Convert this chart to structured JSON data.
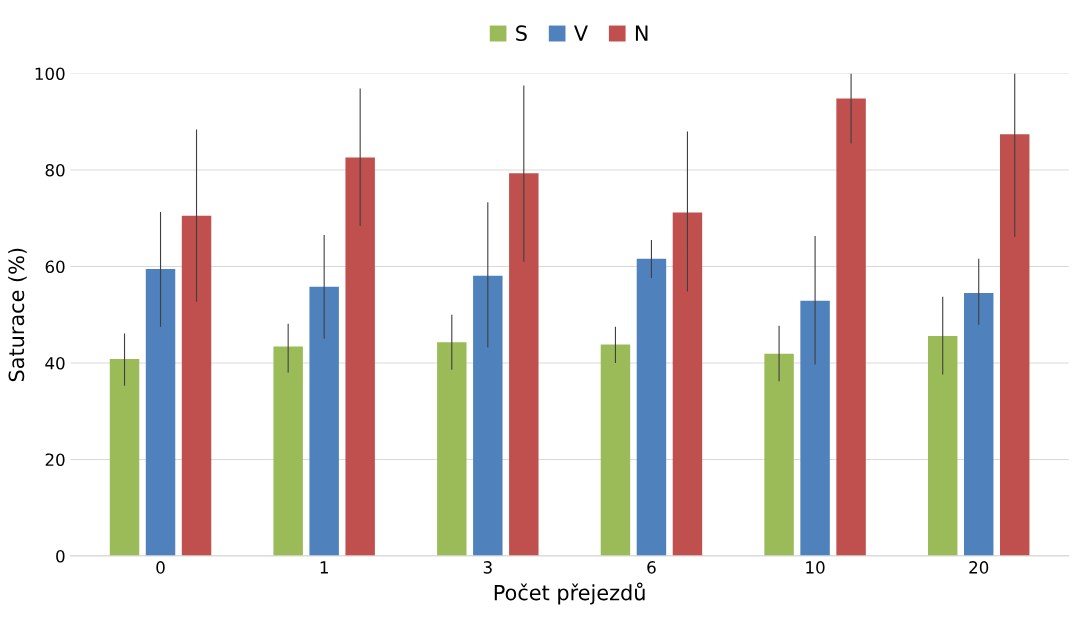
{
  "chart_data": {
    "type": "bar",
    "xlabel": "Počet přejezdů",
    "ylabel": "Saturace (%)",
    "categories": [
      "0",
      "1",
      "3",
      "6",
      "10",
      "20"
    ],
    "series": [
      {
        "name": "S",
        "color": "#9bbb59",
        "values": [
          40.8,
          43.4,
          44.3,
          43.8,
          41.9,
          45.6
        ],
        "errors": [
          [
            35.3,
            46.1
          ],
          [
            38.0,
            48.1
          ],
          [
            38.6,
            50.0
          ],
          [
            40.0,
            47.5
          ],
          [
            36.2,
            47.7
          ],
          [
            37.6,
            53.7
          ]
        ]
      },
      {
        "name": "V",
        "color": "#4f81bd",
        "values": [
          59.5,
          55.8,
          58.1,
          61.6,
          52.9,
          54.5
        ],
        "errors": [
          [
            47.5,
            71.3
          ],
          [
            45.0,
            66.5
          ],
          [
            43.2,
            73.3
          ],
          [
            57.6,
            65.5
          ],
          [
            39.7,
            66.3
          ],
          [
            47.9,
            61.6
          ]
        ]
      },
      {
        "name": "N",
        "color": "#c0504d",
        "values": [
          70.5,
          82.6,
          79.3,
          71.2,
          94.8,
          87.4
        ],
        "errors": [
          [
            52.7,
            88.4
          ],
          [
            68.4,
            96.9
          ],
          [
            61.0,
            97.5
          ],
          [
            54.8,
            88.0
          ],
          [
            85.5,
            100
          ],
          [
            66.1,
            100
          ]
        ]
      }
    ],
    "ylim": [
      0,
      100
    ],
    "yticks": [
      0,
      20,
      40,
      60,
      80,
      100
    ],
    "grid": "y",
    "legend": "top"
  }
}
